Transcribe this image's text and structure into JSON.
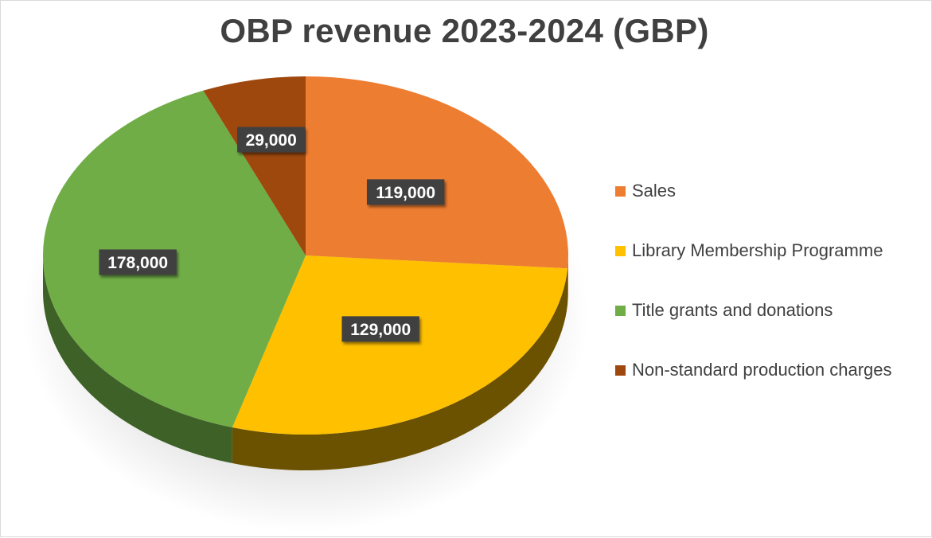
{
  "chart_data": {
    "type": "pie",
    "title": "OBP revenue 2023-2024 (GBP)",
    "categories": [
      "Sales",
      "Library Membership Programme",
      "Title grants and donations",
      "Non-standard production charges"
    ],
    "values": [
      119000,
      129000,
      178000,
      29000
    ],
    "data_labels": [
      "119,000",
      "129,000",
      "178,000",
      "29,000"
    ],
    "colors": [
      "#ED7D31",
      "#FFC000",
      "#70AD47",
      "#9E480E"
    ],
    "side_colors": [
      "#B35E25",
      "#6B5200",
      "#3E6128",
      "#6A300A"
    ],
    "style": "3d",
    "legend_position": "right"
  },
  "legend": {
    "items": [
      {
        "label": "Sales",
        "color": "#ED7D31"
      },
      {
        "label": "Library Membership Programme",
        "color": "#FFC000"
      },
      {
        "label": "Title grants and donations",
        "color": "#70AD47"
      },
      {
        "label": "Non-standard production charges",
        "color": "#9E480E"
      }
    ]
  }
}
